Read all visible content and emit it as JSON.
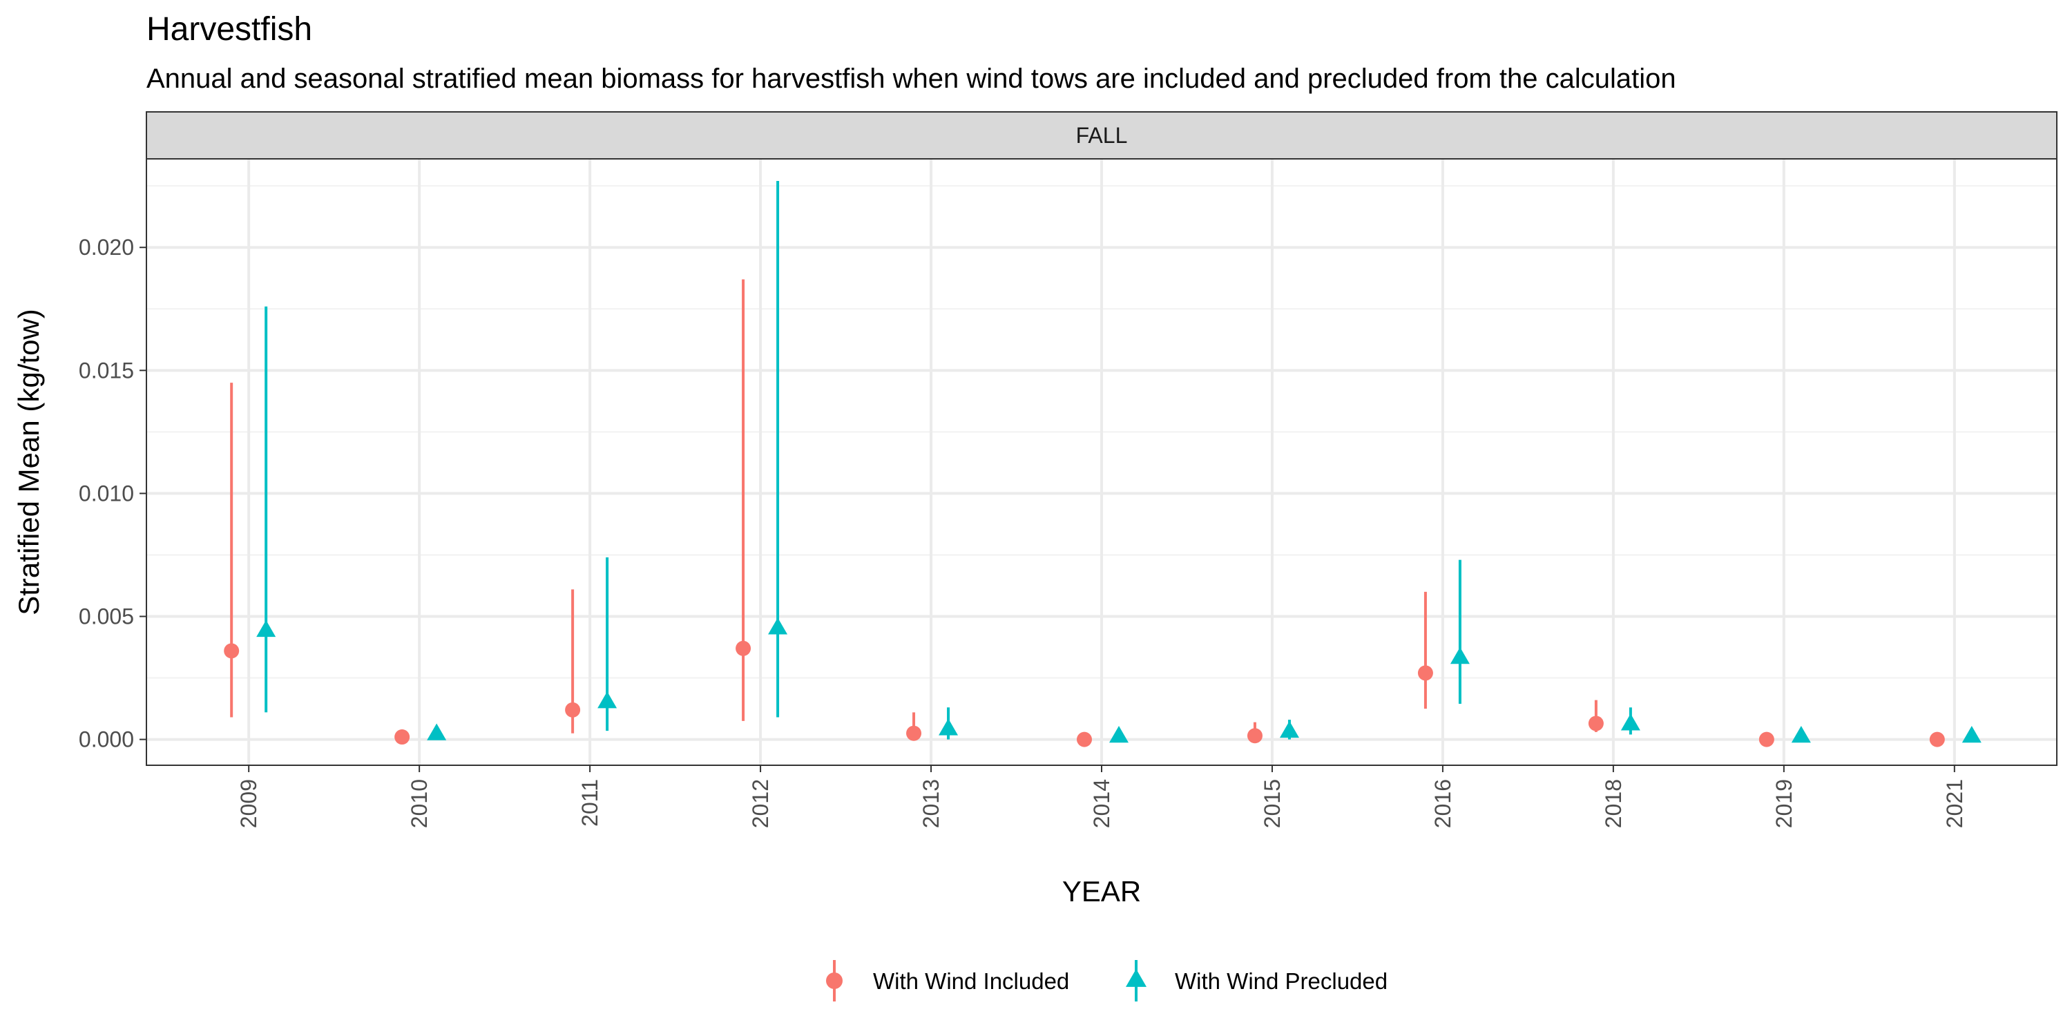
{
  "chart_data": {
    "type": "scatter",
    "title": "Harvestfish",
    "subtitle": "Annual and seasonal stratified mean biomass for harvestfish when wind tows are included and precluded from the calculation",
    "facet": "FALL",
    "xlabel": "YEAR",
    "ylabel": "Stratified Mean (kg/tow)",
    "categories": [
      "2009",
      "2010",
      "2011",
      "2012",
      "2013",
      "2014",
      "2015",
      "2016",
      "2018",
      "2019",
      "2021"
    ],
    "ylim": [
      -0.00105,
      0.0236
    ],
    "yticks": [
      0.0,
      0.005,
      0.01,
      0.015,
      0.02
    ],
    "ytick_labels": [
      "0.000",
      "0.005",
      "0.010",
      "0.015",
      "0.020"
    ],
    "grid": true,
    "legend_position": "bottom",
    "series": [
      {
        "name": "With Wind Included",
        "color": "#F8766D",
        "marker": "circle",
        "values": [
          0.0036,
          0.0001,
          0.0012,
          0.0037,
          0.00025,
          0.0,
          0.00015,
          0.0027,
          0.00065,
          0.0,
          0.0
        ],
        "lower": [
          0.0009,
          0.0,
          0.00025,
          0.00075,
          0.0,
          0.0,
          0.0,
          0.00125,
          0.0003,
          0.0,
          0.0
        ],
        "upper": [
          0.0145,
          0.0004,
          0.0061,
          0.0187,
          0.0011,
          0.0,
          0.0007,
          0.006,
          0.0016,
          0.0,
          0.0
        ]
      },
      {
        "name": "With Wind Precluded",
        "color": "#00BFC4",
        "marker": "triangle",
        "values": [
          0.0044,
          0.0002,
          0.0015,
          0.0045,
          0.0004,
          0.0001,
          0.0003,
          0.0033,
          0.0006,
          0.0001,
          0.0001
        ],
        "lower": [
          0.0011,
          0.0,
          0.00035,
          0.0009,
          0.0,
          0.0,
          0.0,
          0.00145,
          0.0002,
          0.0,
          0.0
        ],
        "upper": [
          0.0176,
          0.0005,
          0.0074,
          0.0227,
          0.0013,
          0.0001,
          0.0008,
          0.0073,
          0.0013,
          0.0001,
          0.0001
        ]
      }
    ]
  }
}
